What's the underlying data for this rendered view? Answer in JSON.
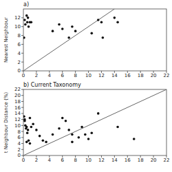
{
  "chart_data": [
    {
      "type": "scatter",
      "title": "a)",
      "y_label": "Nearest Neighbour",
      "xlim": [
        0,
        22
      ],
      "ylim": [
        0,
        14
      ],
      "xticks": [
        0,
        2,
        4,
        6,
        8,
        10,
        12,
        14,
        16,
        18,
        20,
        22
      ],
      "yticks": [
        0,
        2,
        4,
        6,
        8,
        10,
        12
      ],
      "series": [
        {
          "type": "scatter",
          "color": "#111111",
          "x": [
            0.1,
            0.2,
            0.3,
            0.5,
            0.6,
            0.7,
            0.8,
            1.0,
            1.2,
            4.5,
            5.5,
            6.0,
            7.0,
            7.5,
            8.0,
            10.5,
            11.5,
            12.0,
            12.2,
            14.0,
            14.5
          ],
          "values": [
            7.5,
            11.5,
            10.5,
            12.5,
            11.0,
            12.0,
            10.0,
            11.0,
            11.0,
            9.0,
            10.5,
            9.5,
            7.5,
            10.0,
            9.0,
            8.5,
            11.5,
            11.0,
            7.5,
            12.0,
            11.0
          ]
        },
        {
          "type": "line",
          "color": "#666666",
          "x": [
            0,
            14
          ],
          "values": [
            0,
            14
          ]
        }
      ]
    },
    {
      "type": "scatter",
      "title": "b) Current Taxonomy",
      "y_label": "t Neighbour Distance (%)",
      "xlim": [
        0,
        22
      ],
      "ylim": [
        0,
        22
      ],
      "xticks": [
        0,
        2,
        4,
        6,
        8,
        10,
        12,
        14,
        16,
        18,
        20,
        22
      ],
      "yticks": [
        0,
        2,
        4,
        6,
        8,
        10,
        12,
        14,
        16,
        18,
        20,
        22
      ],
      "series": [
        {
          "type": "scatter",
          "color": "#111111",
          "x": [
            0.1,
            0.2,
            0.2,
            0.3,
            0.4,
            0.5,
            0.5,
            0.6,
            0.7,
            0.8,
            1.0,
            1.0,
            1.2,
            1.5,
            2.0,
            2.5,
            3.0,
            3.5,
            4.5,
            5.5,
            6.0,
            6.5,
            7.0,
            7.5,
            7.5,
            8.5,
            9.0,
            9.5,
            10.0,
            10.5,
            11.5,
            14.5,
            17.0
          ],
          "values": [
            13.0,
            11.5,
            12.0,
            10.0,
            9.0,
            9.5,
            4.5,
            7.5,
            8.5,
            5.0,
            12.5,
            4.0,
            9.5,
            10.5,
            8.5,
            6.5,
            5.0,
            4.5,
            7.0,
            9.0,
            12.5,
            11.5,
            8.5,
            7.0,
            4.5,
            6.0,
            9.5,
            7.0,
            5.5,
            7.5,
            14.0,
            9.5,
            5.5
          ]
        },
        {
          "type": "line",
          "color": "#666666",
          "x": [
            0,
            22
          ],
          "values": [
            0,
            22
          ]
        }
      ]
    }
  ]
}
